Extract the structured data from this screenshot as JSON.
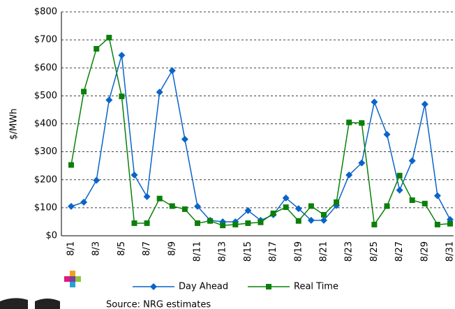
{
  "chart_data": {
    "type": "line",
    "y_label": "$/MWh",
    "source": "Source:   NRG estimates",
    "categories": [
      "8/1",
      null,
      "8/3",
      null,
      "8/5",
      null,
      "8/7",
      null,
      "8/9",
      null,
      "8/11",
      null,
      "8/13",
      null,
      "8/15",
      null,
      "8/17",
      null,
      "8/19",
      null,
      "8/21",
      null,
      "8/23",
      null,
      "8/25",
      null,
      "8/27",
      null,
      "8/29",
      null,
      "8/31"
    ],
    "series": [
      {
        "name": "Day Ahead",
        "color": "#0a64c8",
        "marker": "diamond",
        "values": [
          105,
          120,
          198,
          485,
          645,
          217,
          140,
          513,
          590,
          345,
          105,
          55,
          50,
          50,
          90,
          55,
          75,
          135,
          97,
          55,
          55,
          108,
          217,
          260,
          478,
          362,
          163,
          268,
          470,
          143,
          58
        ]
      },
      {
        "name": "Real Time",
        "color": "#0a800a",
        "marker": "square",
        "values": [
          253,
          515,
          668,
          708,
          498,
          45,
          45,
          133,
          106,
          95,
          45,
          53,
          37,
          40,
          45,
          48,
          80,
          102,
          53,
          106,
          75,
          120,
          405,
          403,
          40,
          106,
          215,
          127,
          115,
          40,
          43
        ]
      }
    ],
    "ylim": [
      0,
      800
    ],
    "yticks": [
      {
        "value": 0,
        "label": "$0"
      },
      {
        "value": 100,
        "label": "$100"
      },
      {
        "value": 200,
        "label": "$200"
      },
      {
        "value": 300,
        "label": "$300"
      },
      {
        "value": 400,
        "label": "$400"
      },
      {
        "value": 500,
        "label": "$500"
      },
      {
        "value": 600,
        "label": "$600"
      },
      {
        "value": 700,
        "label": "$700"
      },
      {
        "value": 800,
        "label": "$800"
      }
    ],
    "grid": true
  }
}
